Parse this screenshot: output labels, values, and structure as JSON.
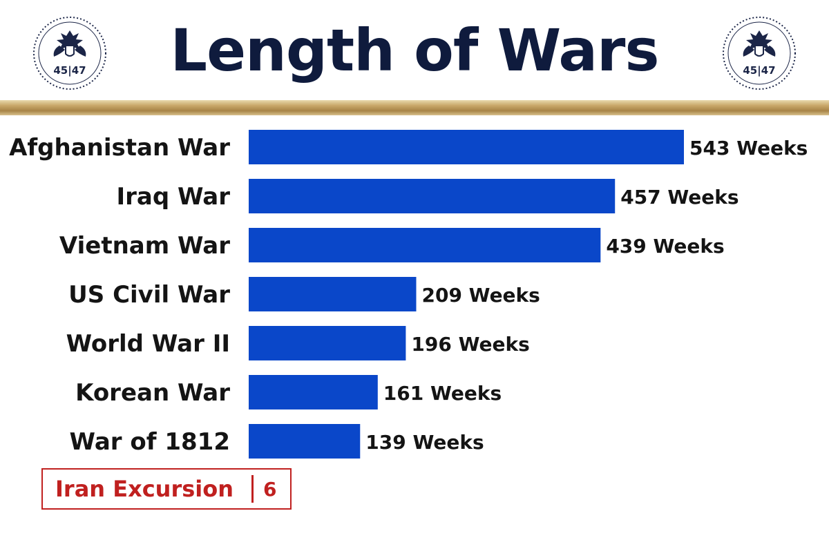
{
  "header": {
    "title": "Length of Wars",
    "seal_text": "45|47"
  },
  "colors": {
    "bar": "#0a47c9",
    "title": "#0f1b3d",
    "note": "#c0201f",
    "gold": "#b8955a"
  },
  "chart_data": {
    "type": "bar",
    "orientation": "horizontal",
    "title": "Length of Wars",
    "categories": [
      "Afghanistan War",
      "Iraq War",
      "Vietnam War",
      "US Civil War",
      "World War II",
      "Korean War",
      "War of 1812"
    ],
    "values": [
      543,
      457,
      439,
      209,
      196,
      161,
      139
    ],
    "value_labels": [
      "543 Weeks",
      "457 Weeks",
      "439 Weeks",
      "209 Weeks",
      "196 Weeks",
      "161 Weeks",
      "139 Weeks"
    ],
    "unit": "Weeks",
    "xlim": [
      0,
      543
    ],
    "grid": false,
    "legend": "none"
  },
  "note": {
    "label": "Iran Excursion",
    "value": "6"
  }
}
